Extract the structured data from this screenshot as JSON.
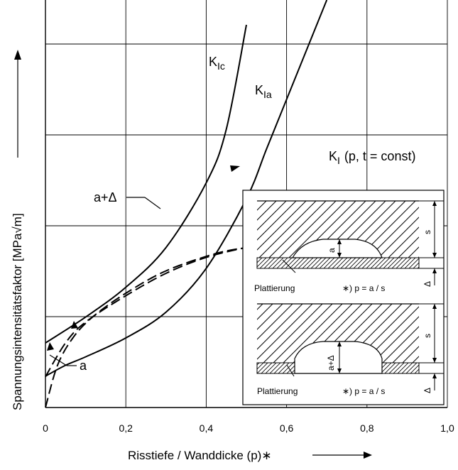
{
  "chart_data": {
    "type": "line",
    "xlabel": "Risstiefe / Wanddicke  (p)∗",
    "ylabel": "Spannungsintensitätsfaktor  [MPa√m]",
    "xlim": [
      0,
      1.0
    ],
    "xticks": [
      "0",
      "0,2",
      "0,4",
      "0,6",
      "0,8",
      "1,0"
    ],
    "grid": true,
    "series": [
      {
        "name": "K_Ic",
        "style": "solid",
        "x": [
          0,
          0.1,
          0.2,
          0.3,
          0.4,
          0.45,
          0.5
        ],
        "y": [
          1.3,
          1.82,
          2.42,
          3.22,
          4.52,
          5.6,
          7.7
        ]
      },
      {
        "name": "K_Ia",
        "style": "solid",
        "x": [
          0,
          0.05,
          0.1,
          0.2,
          0.3,
          0.4,
          0.5,
          0.55,
          0.6,
          0.65,
          0.7
        ],
        "y": [
          0.63,
          0.85,
          1.02,
          1.4,
          1.92,
          2.8,
          4.2,
          5.2,
          6.2,
          7.2,
          8.2
        ]
      },
      {
        "name": "K_I (p, t = const)",
        "style": "dashed",
        "x": [
          0,
          0.05,
          0.1,
          0.2,
          0.3,
          0.4,
          0.5,
          0.6,
          0.7
        ],
        "y": [
          0.62,
          1.3,
          1.72,
          2.25,
          2.7,
          3.02,
          3.22,
          3.37,
          3.45
        ]
      },
      {
        "name": "a+Δ",
        "style": "dashed",
        "x": [
          0,
          0.03,
          0.07,
          0.12,
          0.2,
          0.3,
          0.42,
          0.5
        ],
        "y": [
          0,
          0.85,
          1.42,
          1.84,
          2.3,
          2.75,
          3.09,
          3.22
        ]
      }
    ],
    "annotations": [
      "a",
      "a+Δ"
    ],
    "curve_labels": {
      "kic_main": "K",
      "kic_sub": "Ic",
      "kia_main": "K",
      "kia_sub": "Ia",
      "ki_main": "K",
      "ki_sub": "I",
      "ki_rest": "(p, t = const)"
    }
  },
  "inset": {
    "upper": {
      "crack_label": "a",
      "thickness_label": "s",
      "delta_label": "Δ",
      "cladding_label": "Plattierung",
      "formula": "∗) p = a / s"
    },
    "lower": {
      "crack_label": "a+Δ",
      "thickness_label": "s",
      "delta_label": "Δ",
      "cladding_label": "Plattierung",
      "formula": "∗) p = a / s"
    }
  }
}
